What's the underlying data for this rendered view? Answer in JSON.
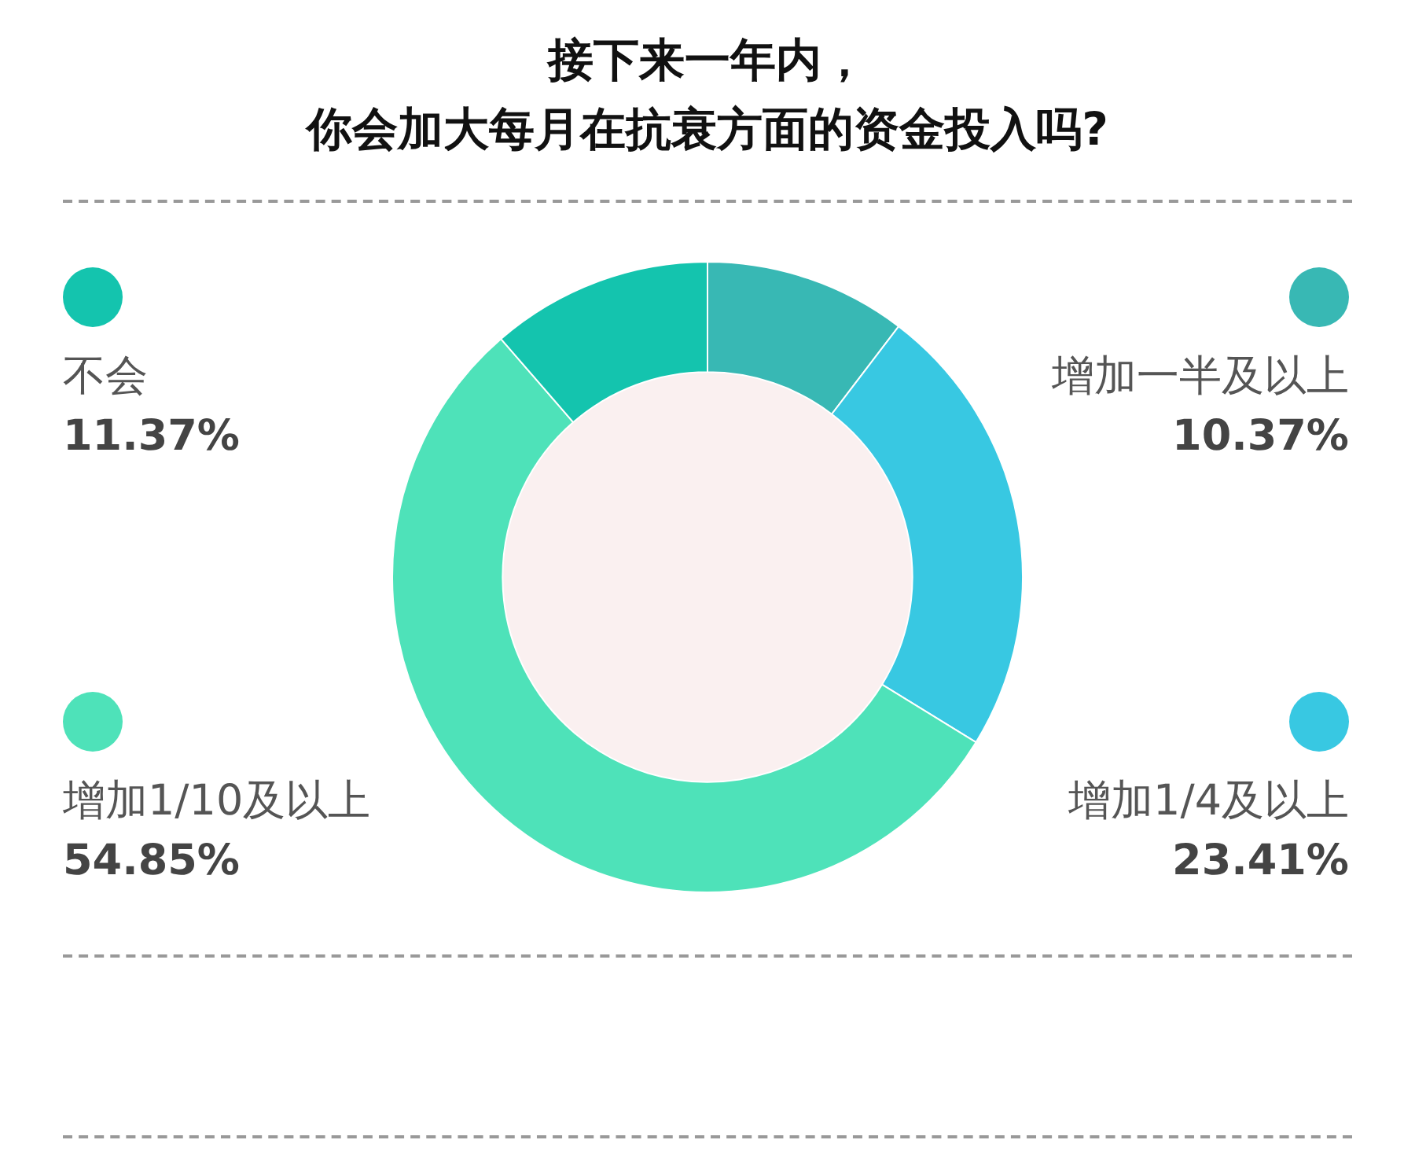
{
  "chart_data": {
    "type": "donut",
    "title": "接下来一年内，",
    "subtitle": "你会加大每月在抗衰方面的资金投入吗?",
    "categories": [
      "增加一半及以上",
      "增加1/4及以上",
      "增加1/10及以上",
      "不会"
    ],
    "values": [
      10.37,
      23.41,
      54.85,
      11.37
    ],
    "colors": [
      "#38b8b4",
      "#38c8e2",
      "#4ee2b9",
      "#14c4ae"
    ],
    "value_labels": [
      "10.37%",
      "23.41%",
      "54.85%",
      "11.37%"
    ],
    "legend": "right"
  }
}
